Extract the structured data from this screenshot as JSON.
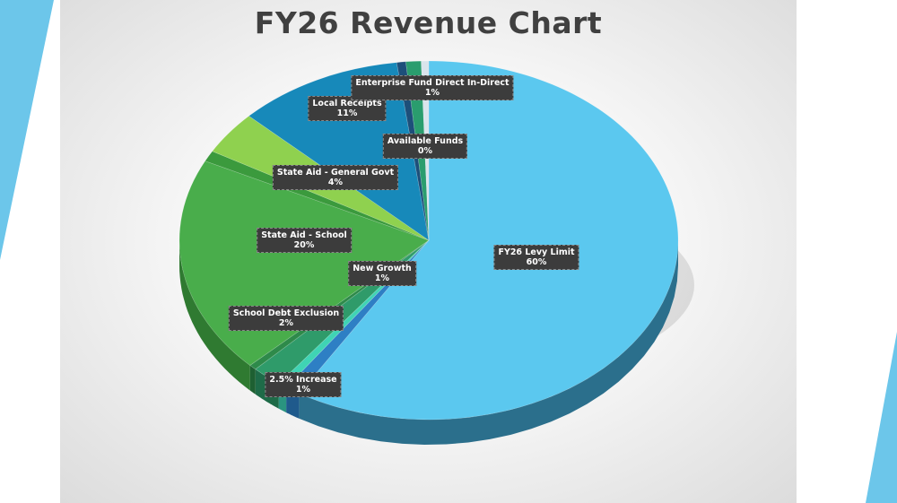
{
  "slide": {
    "accent_color": "#6cc6ea"
  },
  "chart_data": {
    "type": "pie",
    "title": "FY26 Revenue Chart",
    "slices": [
      {
        "label": "FY26 Levy Limit",
        "value": 60,
        "display": "60%",
        "color": "#5bc8ef",
        "side": "#2b6f8c"
      },
      {
        "label": "2.5% Increase",
        "value": 1,
        "display": "1%",
        "color": "#2e7fc4",
        "side": "#1f5a8c"
      },
      {
        "label": "",
        "value": 0.6,
        "display": "",
        "color": "#3fd4b4",
        "side": "#2a9480"
      },
      {
        "label": "School Debt Exclusion",
        "value": 2,
        "display": "2%",
        "color": "#2f9b6a",
        "side": "#1e6b48"
      },
      {
        "label": "",
        "value": 0.5,
        "display": "",
        "color": "#2e8a4a",
        "side": "#1e6032"
      },
      {
        "label": "State Aid - School",
        "value": 20,
        "display": "20%",
        "color": "#49ad4b",
        "side": "#2f7a31"
      },
      {
        "label": "New Growth",
        "value": 1,
        "display": "1%",
        "color": "#3b9a3d",
        "side": "#276b29"
      },
      {
        "label": "State Aid - General Govt",
        "value": 4,
        "display": "4%",
        "color": "#8fd14f",
        "side": "#5f9633"
      },
      {
        "label": "Local Receipts",
        "value": 11,
        "display": "11%",
        "color": "#1789ba",
        "side": "#0f5c7e"
      },
      {
        "label": "",
        "value": 0.6,
        "display": "",
        "color": "#1d4f7a",
        "side": "#123552"
      },
      {
        "label": "Enterprise Fund Direct In-Direct",
        "value": 1,
        "display": "1%",
        "color": "#2a9d6e",
        "side": "#1c6b4b"
      },
      {
        "label": "Available Funds",
        "value": 0.5,
        "display": "0%",
        "color": "#d9e4ec",
        "side": "#a8b4bc"
      }
    ]
  }
}
